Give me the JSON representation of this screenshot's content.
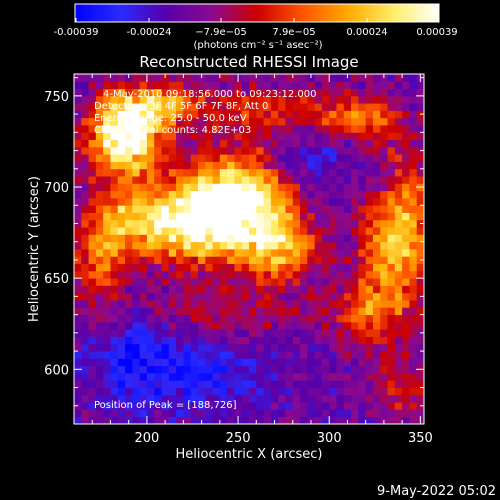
{
  "colors": {
    "background": "#000000",
    "axes": "#ffffff",
    "text": "#ffffff",
    "colormap_stops": [
      "#0000ff",
      "#2a2aff",
      "#5500aa",
      "#8a0a90",
      "#cc0000",
      "#ff5500",
      "#ffaa00",
      "#ffee66",
      "#ffffff"
    ]
  },
  "colorbar": {
    "ticks": [
      "-0.00039",
      "-0.00024",
      "−7.9e−05",
      "7.9e−05",
      "0.00024",
      "0.00039"
    ],
    "unit_label": "(photons cm⁻² s⁻¹ asec⁻²)",
    "range": [
      -0.00039,
      0.00039
    ]
  },
  "chart_data": {
    "type": "heatmap",
    "title": "Reconstructed RHESSI Image",
    "xlabel": "Heliocentric X (arcsec)",
    "ylabel": "Heliocentric Y (arcsec)",
    "xlim": [
      160,
      352
    ],
    "ylim": [
      570,
      762
    ],
    "x_ticks": [
      "200",
      "250",
      "300",
      "350"
    ],
    "y_ticks": [
      "600",
      "650",
      "700",
      "750"
    ],
    "grid": false,
    "annotations": [
      "4-May-2010 09:18:56.000 to 09:23:12.000",
      "Detectors: 3F 4F 5F 6F 7F 8F, Att 0",
      "Energy Range: 25.0 - 50.0 keV",
      "Clean    Total counts: 4.82E+03"
    ],
    "peak_label": "Position of Peak = [188,726]",
    "peak": [
      188,
      726
    ],
    "pixel_size_arcsec": 4,
    "sources": [
      {
        "x": 188,
        "y": 726,
        "sx": 14,
        "sy": 14,
        "amp": 1.0
      },
      {
        "x": 203,
        "y": 745,
        "sx": 20,
        "sy": 9,
        "amp": 0.55
      },
      {
        "x": 250,
        "y": 694,
        "sx": 22,
        "sy": 17,
        "amp": 0.95
      },
      {
        "x": 228,
        "y": 678,
        "sx": 20,
        "sy": 14,
        "amp": 0.65
      },
      {
        "x": 195,
        "y": 682,
        "sx": 18,
        "sy": 13,
        "amp": 0.55
      },
      {
        "x": 272,
        "y": 665,
        "sx": 16,
        "sy": 12,
        "amp": 0.6
      },
      {
        "x": 337,
        "y": 673,
        "sx": 13,
        "sy": 32,
        "amp": 0.72
      },
      {
        "x": 317,
        "y": 738,
        "sx": 15,
        "sy": 8,
        "amp": 0.45
      },
      {
        "x": 175,
        "y": 660,
        "sx": 10,
        "sy": 18,
        "amp": 0.45
      },
      {
        "x": 318,
        "y": 632,
        "sx": 11,
        "sy": 13,
        "amp": 0.35
      },
      {
        "x": 238,
        "y": 632,
        "sx": 40,
        "sy": 10,
        "amp": 0.2
      },
      {
        "x": 340,
        "y": 588,
        "sx": 12,
        "sy": 10,
        "amp": 0.25
      },
      {
        "x": 268,
        "y": 742,
        "sx": 28,
        "sy": 10,
        "amp": 0.3
      }
    ],
    "dips": [
      {
        "x": 222,
        "y": 598,
        "sx": 28,
        "sy": 14,
        "amp": 0.35
      },
      {
        "x": 288,
        "y": 714,
        "sx": 14,
        "sy": 12,
        "amp": 0.3
      },
      {
        "x": 326,
        "y": 706,
        "sx": 8,
        "sy": 10,
        "amp": 0.3
      },
      {
        "x": 190,
        "y": 612,
        "sx": 14,
        "sy": 18,
        "amp": 0.25
      }
    ]
  },
  "footer": {
    "timestamp": "9-May-2022 05:02"
  }
}
